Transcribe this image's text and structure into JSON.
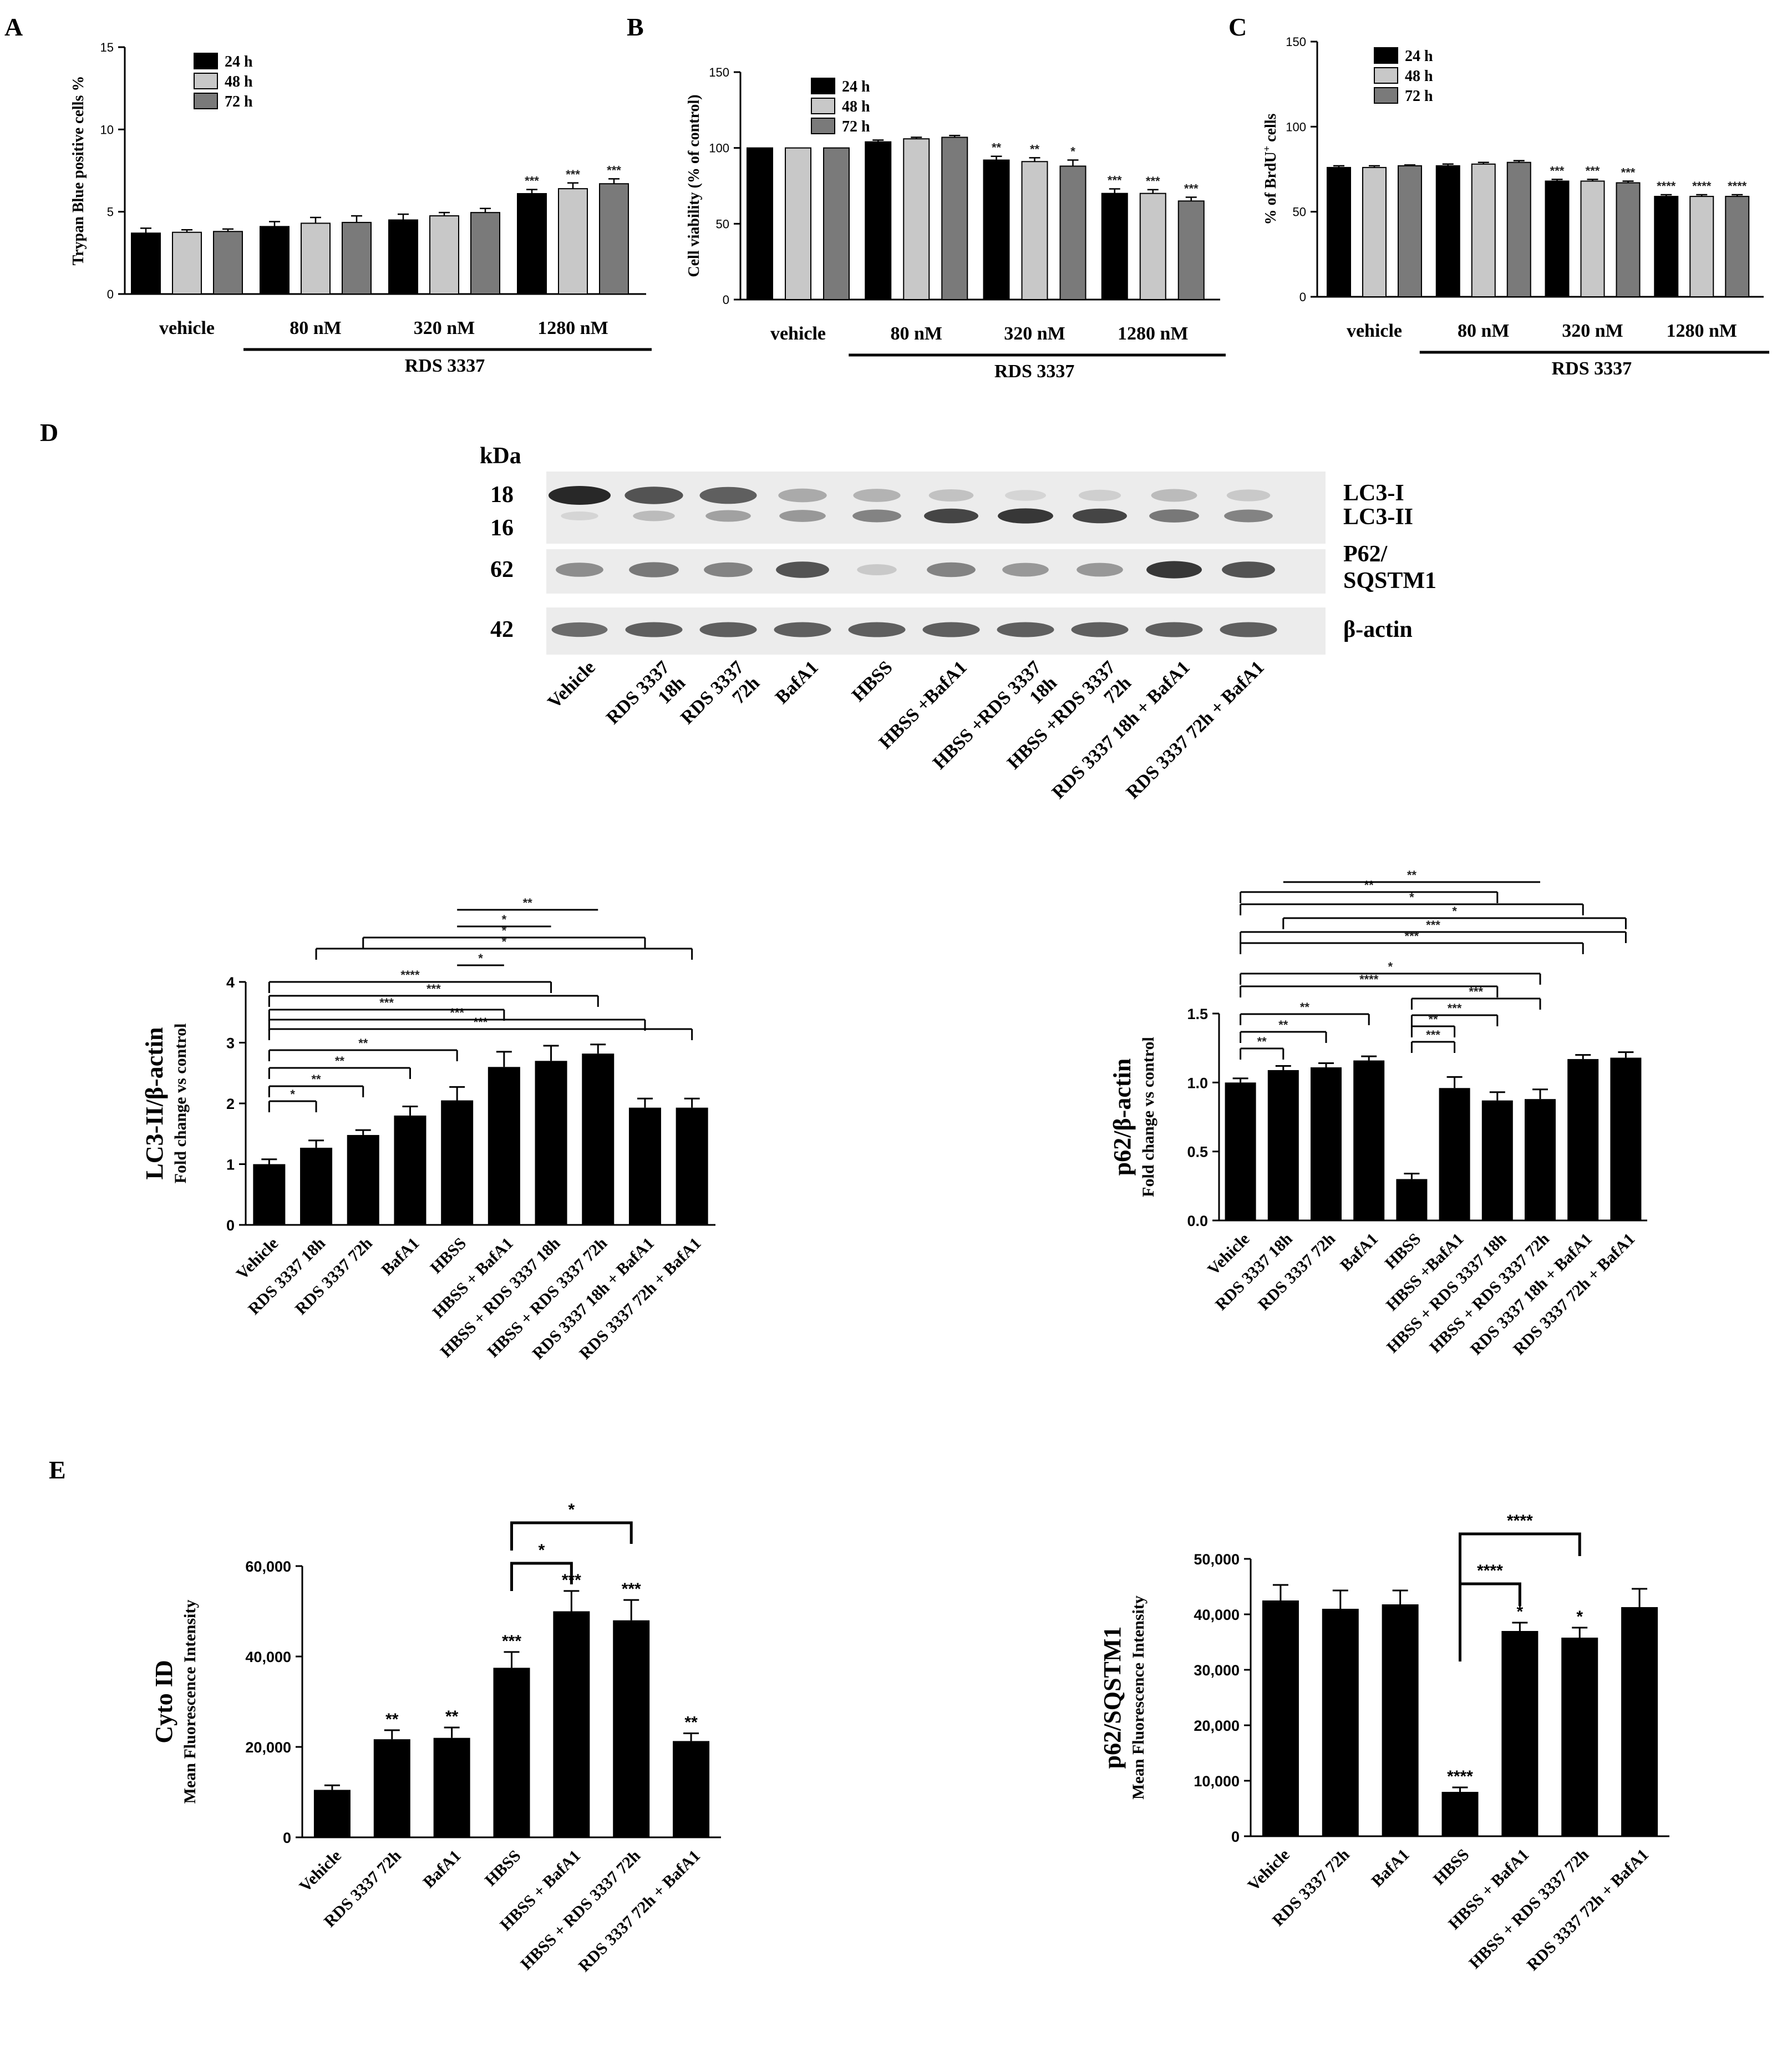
{
  "panels": {
    "A": "A",
    "B": "B",
    "C": "C",
    "D": "D",
    "E": "E"
  },
  "colors": {
    "h24": "#000000",
    "h48": "#c8c8c8",
    "h72": "#7a7a7a",
    "bar": "#000000"
  },
  "chart_data": [
    {
      "id": "A",
      "type": "bar",
      "ylabel": "Trypan Blue positive cells %",
      "ylim": [
        0,
        15
      ],
      "yticks": [
        0,
        5,
        10,
        15
      ],
      "categories": [
        "vehicle",
        "80 nM",
        "320 nM",
        "1280 nM"
      ],
      "group_label": "RDS 3337",
      "series": [
        {
          "name": "24 h",
          "values": [
            3.7,
            4.1,
            4.5,
            6.1
          ],
          "errors": [
            0.3,
            0.3,
            0.35,
            0.25
          ],
          "stars": [
            "",
            "",
            "",
            "***"
          ]
        },
        {
          "name": "48 h",
          "values": [
            3.75,
            4.3,
            4.75,
            6.4
          ],
          "errors": [
            0.15,
            0.35,
            0.2,
            0.35
          ],
          "stars": [
            "",
            "",
            "",
            "***"
          ]
        },
        {
          "name": "72 h",
          "values": [
            3.8,
            4.35,
            4.95,
            6.7
          ],
          "errors": [
            0.15,
            0.4,
            0.25,
            0.3
          ],
          "stars": [
            "",
            "",
            "",
            "***"
          ]
        }
      ]
    },
    {
      "id": "B",
      "type": "bar",
      "ylabel": "Cell viability (% of control)",
      "ylim": [
        0,
        150
      ],
      "yticks": [
        0,
        50,
        100,
        150
      ],
      "categories": [
        "vehicle",
        "80 nM",
        "320 nM",
        "1280 nM"
      ],
      "group_label": "RDS 3337",
      "series": [
        {
          "name": "24 h",
          "values": [
            100,
            104,
            92,
            70
          ],
          "errors": [
            0,
            1.2,
            2.5,
            3
          ],
          "stars": [
            "",
            "",
            "**",
            "***"
          ]
        },
        {
          "name": "48 h",
          "values": [
            100,
            106,
            91,
            70
          ],
          "errors": [
            0,
            1,
            2.5,
            2.5
          ],
          "stars": [
            "",
            "",
            "**",
            "***"
          ]
        },
        {
          "name": "72 h",
          "values": [
            100,
            107,
            88,
            65
          ],
          "errors": [
            0,
            1.2,
            4,
            2.5
          ],
          "stars": [
            "",
            "",
            "*",
            "***"
          ]
        }
      ]
    },
    {
      "id": "C",
      "type": "bar",
      "ylabel": "% of BrdU+ cells",
      "ylim": [
        0,
        150
      ],
      "yticks": [
        0,
        50,
        100,
        150
      ],
      "categories": [
        "vehicle",
        "80 nM",
        "320 nM",
        "1280 nM"
      ],
      "group_label": "RDS 3337",
      "series": [
        {
          "name": "24 h",
          "values": [
            76,
            77,
            68,
            59
          ],
          "errors": [
            1,
            1,
            1,
            1
          ],
          "stars": [
            "",
            "",
            "***",
            "****"
          ]
        },
        {
          "name": "48 h",
          "values": [
            76,
            78,
            68,
            59
          ],
          "errors": [
            1,
            1,
            1,
            1
          ],
          "stars": [
            "",
            "",
            "***",
            "****"
          ]
        },
        {
          "name": "72 h",
          "values": [
            77,
            79,
            67,
            59
          ],
          "errors": [
            0.5,
            1,
            1,
            1
          ],
          "stars": [
            "",
            "",
            "***",
            "****"
          ]
        }
      ]
    },
    {
      "id": "D-LC3",
      "type": "bar",
      "ylabel": "LC3-II/β-actin",
      "ylabel2": "Fold change vs control",
      "ylim": [
        0,
        4
      ],
      "yticks": [
        0,
        1,
        2,
        3,
        4
      ],
      "categories": [
        "Vehicle",
        "RDS 3337 18h",
        "RDS 3337 72h",
        "BafA1",
        "HBSS",
        "HBSS + BafA1",
        "HBSS + RDS 3337 18h",
        "HBSS + RDS 3337 72h",
        "RDS 3337 18h + BafA1",
        "RDS 3337 72h + BafA1"
      ],
      "values": [
        1.0,
        1.27,
        1.48,
        1.8,
        2.05,
        2.6,
        2.7,
        2.82,
        1.93,
        1.93
      ],
      "errors": [
        0.08,
        0.12,
        0.08,
        0.15,
        0.22,
        0.25,
        0.25,
        0.15,
        0.15,
        0.15
      ],
      "brackets": [
        {
          "from": 0,
          "to": 1,
          "label": "*",
          "style": "tick"
        },
        {
          "from": 0,
          "to": 2,
          "label": "**",
          "style": "tick"
        },
        {
          "from": 0,
          "to": 3,
          "label": "**",
          "style": "tick"
        },
        {
          "from": 0,
          "to": 4,
          "label": "**",
          "style": "tick"
        },
        {
          "from": 0,
          "to": 9,
          "label": "***",
          "style": "tick"
        },
        {
          "from": 0,
          "to": 8,
          "label": "***",
          "style": "tick"
        },
        {
          "from": 0,
          "to": 5,
          "label": "***",
          "style": "tick"
        },
        {
          "from": 0,
          "to": 7,
          "label": "***",
          "style": "tick"
        },
        {
          "from": 0,
          "to": 6,
          "label": "****",
          "style": "tick"
        },
        {
          "from": 4,
          "to": 5,
          "label": "*",
          "style": "line"
        },
        {
          "from": 1,
          "to": 9,
          "label": "*",
          "style": "tick"
        },
        {
          "from": 2,
          "to": 8,
          "label": "*",
          "style": "tick"
        },
        {
          "from": 4,
          "to": 6,
          "label": "*",
          "style": "line"
        },
        {
          "from": 4,
          "to": 7,
          "label": "**",
          "style": "line"
        }
      ]
    },
    {
      "id": "D-p62",
      "type": "bar",
      "ylabel": "p62/β-actin",
      "ylabel2": "Fold change vs control",
      "ylim": [
        0,
        1.5
      ],
      "yticks": [
        0.0,
        0.5,
        1.0,
        1.5
      ],
      "categories": [
        "Vehicle",
        "RDS 3337 18h",
        "RDS 3337 72h",
        "BafA1",
        "HBSS",
        "HBSS +BafA1",
        "HBSS + RDS 3337 18h",
        "HBSS + RDS 3337 72h",
        "RDS 3337 18h + BafA1",
        "RDS 3337 72h + BafA1"
      ],
      "values": [
        1.0,
        1.09,
        1.11,
        1.16,
        0.3,
        0.96,
        0.87,
        0.88,
        1.17,
        1.18
      ],
      "errors": [
        0.03,
        0.03,
        0.03,
        0.03,
        0.04,
        0.08,
        0.06,
        0.07,
        0.03,
        0.04
      ],
      "brackets": [
        {
          "from": 0,
          "to": 1,
          "label": "**",
          "style": "tick"
        },
        {
          "from": 0,
          "to": 2,
          "label": "**",
          "style": "tick"
        },
        {
          "from": 0,
          "to": 3,
          "label": "**",
          "style": "tick"
        },
        {
          "from": 0,
          "to": 6,
          "label": "****",
          "style": "tick"
        },
        {
          "from": 0,
          "to": 7,
          "label": "*",
          "style": "tick"
        },
        {
          "from": 0,
          "to": 8,
          "label": "***",
          "style": "tick"
        },
        {
          "from": 0,
          "to": 9,
          "label": "***",
          "style": "tick"
        },
        {
          "from": 4,
          "to": 5,
          "label": "***",
          "style": "tick"
        },
        {
          "from": 4,
          "to": 5,
          "label": "**",
          "style": "tick"
        },
        {
          "from": 4,
          "to": 6,
          "label": "***",
          "style": "tick"
        },
        {
          "from": 4,
          "to": 7,
          "label": "***",
          "style": "tick"
        },
        {
          "from": 1,
          "to": 9,
          "label": "*",
          "style": "tick"
        },
        {
          "from": 0,
          "to": 8,
          "label": "*",
          "style": "tick"
        },
        {
          "from": 0,
          "to": 6,
          "label": "**",
          "style": "tick"
        },
        {
          "from": 1,
          "to": 7,
          "label": "**",
          "style": "line"
        }
      ]
    },
    {
      "id": "E-CytoID",
      "type": "bar",
      "ylabel": "Cyto ID",
      "ylabel2": "Mean Fluorescence Intensity",
      "ylim": [
        0,
        60000
      ],
      "yticks": [
        0,
        20000,
        40000,
        60000
      ],
      "yticklabels": [
        "0",
        "20,000",
        "40,000",
        "60,000"
      ],
      "categories": [
        "Vehicle",
        "RDS 3337 72h",
        "BafA1",
        "HBSS",
        "HBSS + BafA1",
        "HBSS + RDS 3337 72h",
        "RDS 3337 72h + BafA1"
      ],
      "values": [
        10500,
        21700,
        22000,
        37500,
        50000,
        48000,
        21300
      ],
      "errors": [
        1000,
        2000,
        2300,
        3500,
        4500,
        4500,
        1700
      ],
      "stars": [
        "",
        "**",
        "**",
        "***",
        "***",
        "***",
        "**"
      ],
      "brackets": [
        {
          "from": 3,
          "to": 4,
          "label": "*"
        },
        {
          "from": 3,
          "to": 5,
          "label": "*"
        }
      ]
    },
    {
      "id": "E-p62",
      "type": "bar",
      "ylabel": "p62/SQSTM1",
      "ylabel2": "Mean Fluorescence Intensity",
      "ylim": [
        0,
        50000
      ],
      "yticks": [
        0,
        10000,
        20000,
        30000,
        40000,
        50000
      ],
      "yticklabels": [
        "0",
        "10,000",
        "20,000",
        "30,000",
        "40,000",
        "50,000"
      ],
      "categories": [
        "Vehicle",
        "RDS 3337 72h",
        "BafA1",
        "HBSS",
        "HBSS + BafA1",
        "HBSS + RDS 3337 72h",
        "RDS 3337 72h + BafA1"
      ],
      "values": [
        42500,
        41000,
        41800,
        8000,
        37000,
        35800,
        41300
      ],
      "errors": [
        2800,
        3300,
        2500,
        800,
        1500,
        1800,
        3300
      ],
      "stars": [
        "",
        "",
        "",
        "****",
        "*",
        "*",
        ""
      ],
      "brackets": [
        {
          "from": 3,
          "to": 4,
          "label": "****"
        },
        {
          "from": 3,
          "to": 5,
          "label": "****"
        }
      ]
    }
  ],
  "blot": {
    "kda_label": "kDa",
    "markers": [
      "18",
      "16",
      "62",
      "42"
    ],
    "band_labels": [
      "LC3-I",
      "LC3-II",
      "P62/",
      "SQSTM1",
      "β-actin"
    ],
    "lanes": [
      [
        "Vehicle"
      ],
      [
        "RDS 3337",
        "18h"
      ],
      [
        "RDS 3337",
        "72h"
      ],
      [
        "BafA1"
      ],
      [
        "HBSS"
      ],
      [
        "HBSS +BafA1"
      ],
      [
        "HBSS +RDS 3337",
        "18h"
      ],
      [
        "HBSS +RDS 3337",
        "72h"
      ],
      [
        "RDS 3337 18h + BafA1"
      ],
      [
        "RDS 3337 72h + BafA1"
      ]
    ],
    "lc3i_intensity": [
      1.0,
      0.85,
      0.8,
      0.45,
      0.4,
      0.3,
      0.15,
      0.2,
      0.35,
      0.25
    ],
    "lc3ii_intensity": [
      0.15,
      0.35,
      0.5,
      0.55,
      0.65,
      0.9,
      0.95,
      0.9,
      0.7,
      0.65
    ],
    "p62_intensity": [
      0.6,
      0.7,
      0.65,
      0.85,
      0.25,
      0.65,
      0.55,
      0.55,
      0.95,
      0.85
    ],
    "actin_intensity": [
      0.75,
      0.8,
      0.8,
      0.8,
      0.8,
      0.8,
      0.8,
      0.8,
      0.8,
      0.8
    ]
  }
}
